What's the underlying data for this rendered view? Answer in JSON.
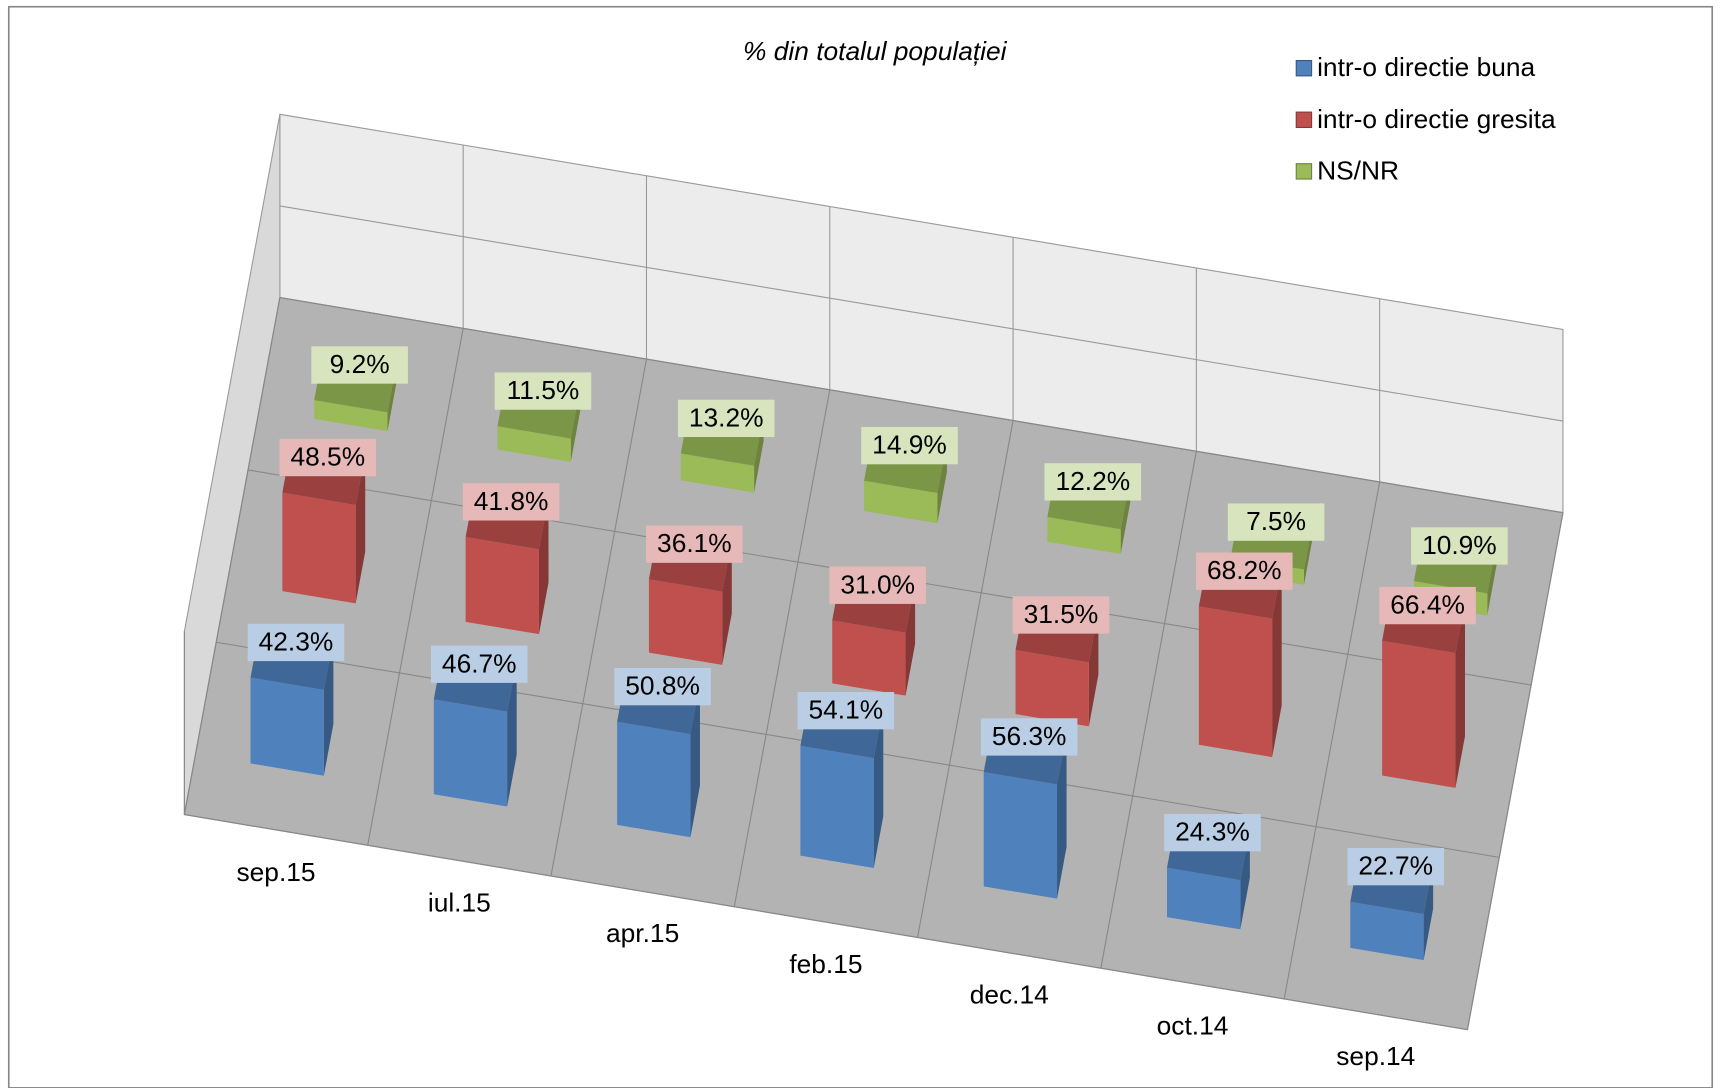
{
  "chart_data": {
    "type": "bar3d",
    "title": "% din totalul populației",
    "categories": [
      "sep.15",
      "iul.15",
      "apr.15",
      "feb.15",
      "dec.14",
      "oct.14",
      "sep.14"
    ],
    "series": [
      {
        "name": "intr-o directie buna",
        "color": "#4f81bd",
        "label_color": "#b9cde5",
        "values": [
          42.3,
          46.7,
          50.8,
          54.1,
          56.3,
          24.3,
          22.7
        ],
        "value_labels": [
          "42.3%",
          "46.7%",
          "50.8%",
          "54.1%",
          "56.3%",
          "24.3%",
          "22.7%"
        ]
      },
      {
        "name": "intr-o directie gresita",
        "color": "#c0504d",
        "label_color": "#e6b9b8",
        "values": [
          48.5,
          41.8,
          36.1,
          31.0,
          31.5,
          68.2,
          66.4
        ],
        "value_labels": [
          "48.5%",
          "41.8%",
          "36.1%",
          "31.0%",
          "31.5%",
          "68.2%",
          "66.4%"
        ]
      },
      {
        "name": "NS/NR",
        "color": "#9bbb59",
        "label_color": "#d7e4bd",
        "values": [
          9.2,
          11.5,
          13.2,
          14.9,
          12.2,
          7.5,
          10.9
        ],
        "value_labels": [
          "9.2%",
          "11.5%",
          "13.2%",
          "14.9%",
          "12.2%",
          "7.5%",
          "10.9%"
        ]
      }
    ],
    "legend": "top-right"
  }
}
